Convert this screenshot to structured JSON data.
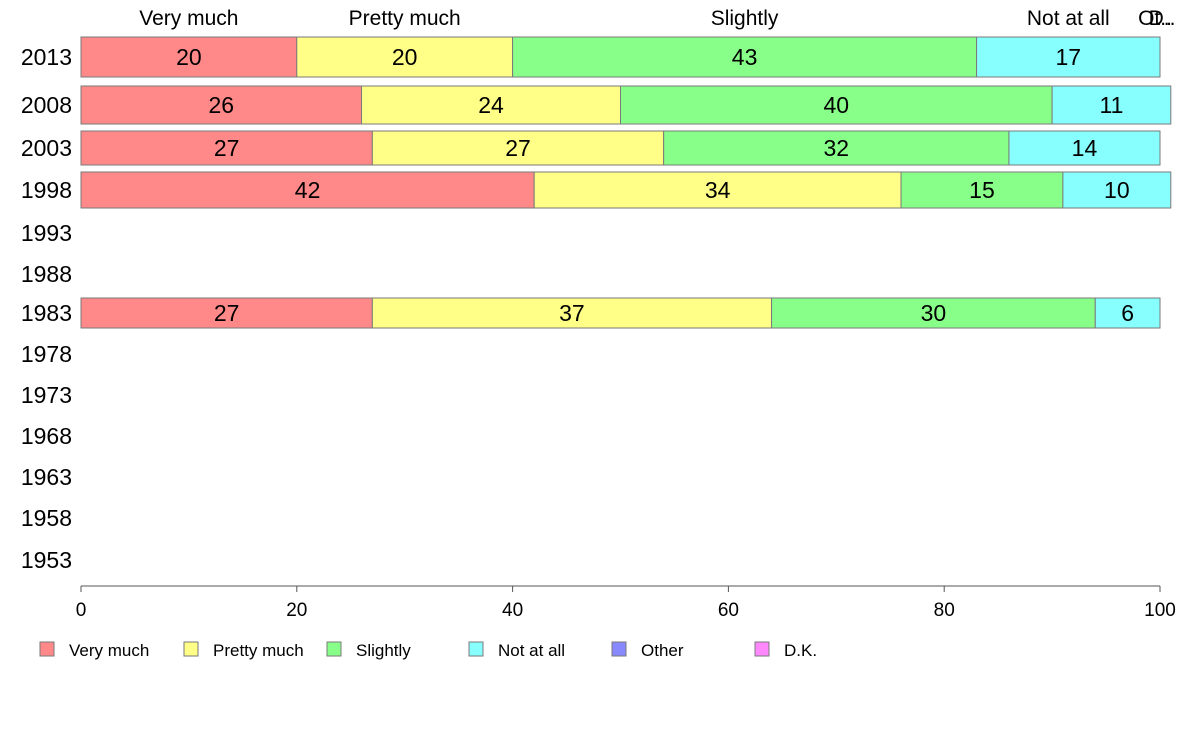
{
  "chart_data": {
    "type": "bar",
    "orientation": "horizontal",
    "stacked": true,
    "categories": [
      "2013",
      "2008",
      "2003",
      "1998",
      "1993",
      "1988",
      "1983",
      "1978",
      "1973",
      "1968",
      "1963",
      "1958",
      "1953"
    ],
    "series": [
      {
        "name": "Very much",
        "color": "#ff8888",
        "values": [
          20,
          26,
          27,
          42,
          null,
          null,
          27,
          null,
          null,
          null,
          null,
          null,
          null
        ]
      },
      {
        "name": "Pretty much",
        "color": "#ffff88",
        "values": [
          20,
          24,
          27,
          34,
          null,
          null,
          37,
          null,
          null,
          null,
          null,
          null,
          null
        ]
      },
      {
        "name": "Slightly",
        "color": "#88ff88",
        "values": [
          43,
          40,
          32,
          15,
          null,
          null,
          30,
          null,
          null,
          null,
          null,
          null,
          null
        ]
      },
      {
        "name": "Not at all",
        "color": "#88ffff",
        "values": [
          17,
          11,
          14,
          10,
          null,
          null,
          6,
          null,
          null,
          null,
          null,
          null,
          null
        ]
      },
      {
        "name": "Other",
        "color": "#8888ff",
        "values": [
          0,
          0,
          0,
          0,
          null,
          null,
          0,
          null,
          null,
          null,
          null,
          null,
          null
        ]
      },
      {
        "name": "D.K.",
        "color": "#ff88ff",
        "values": [
          0,
          0,
          0,
          0,
          null,
          null,
          0,
          null,
          null,
          null,
          null,
          null,
          null
        ]
      }
    ],
    "top_labels": [
      "Very much",
      "Pretty much",
      "Slightly",
      "Not at all",
      "Ot..",
      "D.."
    ],
    "xlim": [
      0,
      100
    ],
    "xticks": [
      "0",
      "20",
      "40",
      "60",
      "80",
      "100"
    ],
    "grid": false,
    "legend_position": "bottom"
  }
}
